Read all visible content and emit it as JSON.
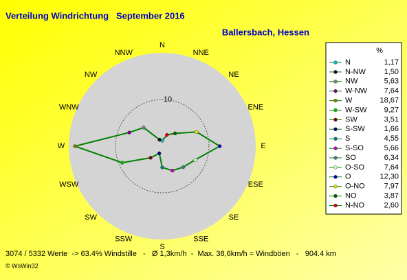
{
  "chart_data": {
    "type": "radar",
    "title": "Verteilung Windrichtung   September 2016",
    "subtitle": "Ballersbach, Hessen",
    "axis_labels": [
      "N",
      "NNE",
      "NE",
      "ENE",
      "E",
      "ESE",
      "SE",
      "SSE",
      "S",
      "SSW",
      "SW",
      "WSW",
      "W",
      "WNW",
      "NW",
      "NNW"
    ],
    "rlim": [
      0,
      20
    ],
    "rticks": [
      10
    ],
    "line_color": "#008000",
    "legend_title": "%",
    "categories": [
      "N",
      "N-NW",
      "NW",
      "W-NW",
      "W",
      "W-SW",
      "SW",
      "S-SW",
      "S",
      "S-SO",
      "SO",
      "O-SO",
      "O",
      "O-NO",
      "NO",
      "N-NO"
    ],
    "values": [
      1.17,
      1.5,
      5.63,
      7.64,
      18.67,
      9.27,
      3.51,
      1.66,
      4.55,
      5.66,
      6.34,
      7.64,
      12.3,
      7.97,
      3.87,
      2.6
    ],
    "value_labels": [
      "1,17",
      "1,50",
      "5,63",
      "7,64",
      "18,67",
      "9,27",
      "3,51",
      "1,66",
      "4,55",
      "5,66",
      "6,34",
      "7,64",
      "12,30",
      "7,97",
      "3,87",
      "2,60"
    ],
    "colors": [
      "#00c0c0",
      "#000000",
      "#808080",
      "#800080",
      "#808000",
      "#00c000",
      "#800000",
      "#000080",
      "#008080",
      "#c000c0",
      "#408080",
      "#c0ffc0",
      "#0000c0",
      "#e0e000",
      "#006000",
      "#e00000"
    ],
    "footer": "3074 / 5332 Werte  -> 63.4% Windstille   -   Ø 1,3km/h  -  Max. 38,6km/h = Windböen   -   904.4 km",
    "credit": "© WsWin32"
  }
}
